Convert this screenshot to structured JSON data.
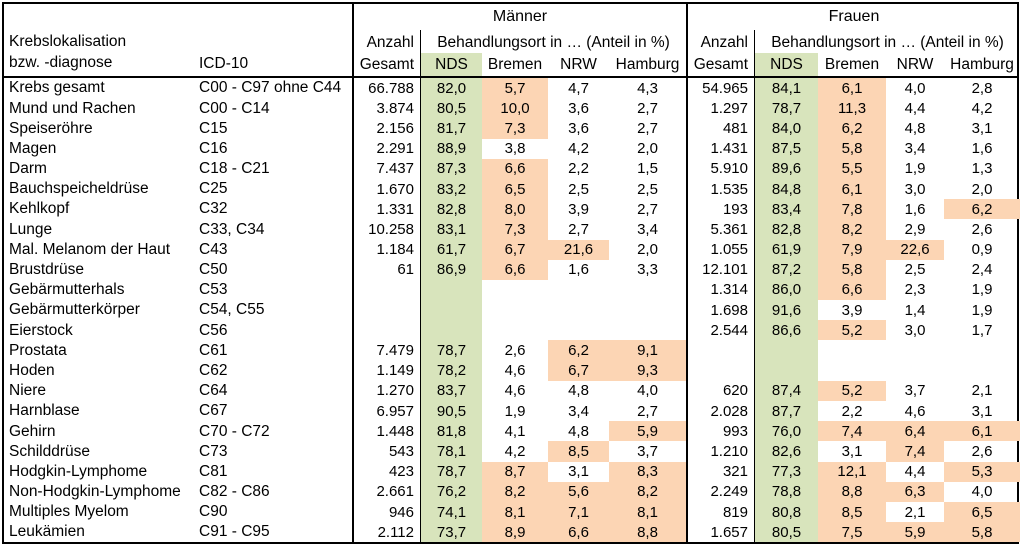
{
  "table": {
    "corner": {
      "line1": "Krebslokalisation",
      "line2": "bzw. -diagnose",
      "icd": "ICD-10"
    },
    "groups": {
      "maenner": "Männer",
      "frauen": "Frauen",
      "anzahl": "Anzahl",
      "gesamt": "Gesamt",
      "behandlungsort": "Behandlungsort in …  (Anteil in %)",
      "locations": [
        "NDS",
        "Bremen",
        "NRW",
        "Hamburg"
      ]
    },
    "colors": {
      "nds_green": "#D8E4BC",
      "highlight_orange": "#FCD5B4"
    },
    "rows": [
      {
        "name": "Krebs gesamt",
        "icd": "C00 - C97 ohne C44",
        "m": {
          "gesamt": "66.788",
          "nds": "82,0",
          "bremen": "5,7",
          "nrw": "4,7",
          "hamburg": "4,3",
          "hl": [
            "bremen"
          ]
        },
        "f": {
          "gesamt": "54.965",
          "nds": "84,1",
          "bremen": "6,1",
          "nrw": "4,0",
          "hamburg": "2,8",
          "hl": [
            "bremen"
          ]
        }
      },
      {
        "name": "Mund und Rachen",
        "icd": "C00 - C14",
        "m": {
          "gesamt": "3.874",
          "nds": "80,5",
          "bremen": "10,0",
          "nrw": "3,6",
          "hamburg": "2,7",
          "hl": [
            "bremen"
          ]
        },
        "f": {
          "gesamt": "1.297",
          "nds": "78,7",
          "bremen": "11,3",
          "nrw": "4,4",
          "hamburg": "4,2",
          "hl": [
            "bremen"
          ]
        }
      },
      {
        "name": "Speiseröhre",
        "icd": "C15",
        "m": {
          "gesamt": "2.156",
          "nds": "81,7",
          "bremen": "7,3",
          "nrw": "3,6",
          "hamburg": "2,7",
          "hl": [
            "bremen"
          ]
        },
        "f": {
          "gesamt": "481",
          "nds": "84,0",
          "bremen": "6,2",
          "nrw": "4,8",
          "hamburg": "3,1",
          "hl": [
            "bremen"
          ]
        }
      },
      {
        "name": "Magen",
        "icd": "C16",
        "m": {
          "gesamt": "2.291",
          "nds": "88,9",
          "bremen": "3,8",
          "nrw": "4,2",
          "hamburg": "2,0",
          "hl": []
        },
        "f": {
          "gesamt": "1.431",
          "nds": "87,5",
          "bremen": "5,8",
          "nrw": "3,4",
          "hamburg": "1,6",
          "hl": [
            "bremen"
          ]
        }
      },
      {
        "name": "Darm",
        "icd": "C18 - C21",
        "m": {
          "gesamt": "7.437",
          "nds": "87,3",
          "bremen": "6,6",
          "nrw": "2,2",
          "hamburg": "1,5",
          "hl": [
            "bremen"
          ]
        },
        "f": {
          "gesamt": "5.910",
          "nds": "89,6",
          "bremen": "5,5",
          "nrw": "1,9",
          "hamburg": "1,3",
          "hl": [
            "bremen"
          ]
        }
      },
      {
        "name": "Bauchspeicheldrüse",
        "icd": "C25",
        "m": {
          "gesamt": "1.670",
          "nds": "83,2",
          "bremen": "6,5",
          "nrw": "2,5",
          "hamburg": "2,5",
          "hl": [
            "bremen"
          ]
        },
        "f": {
          "gesamt": "1.535",
          "nds": "84,8",
          "bremen": "6,1",
          "nrw": "3,0",
          "hamburg": "2,0",
          "hl": [
            "bremen"
          ]
        }
      },
      {
        "name": "Kehlkopf",
        "icd": "C32",
        "m": {
          "gesamt": "1.331",
          "nds": "82,8",
          "bremen": "8,0",
          "nrw": "3,9",
          "hamburg": "2,7",
          "hl": [
            "bremen"
          ]
        },
        "f": {
          "gesamt": "193",
          "nds": "83,4",
          "bremen": "7,8",
          "nrw": "1,6",
          "hamburg": "6,2",
          "hl": [
            "bremen",
            "hamburg"
          ]
        }
      },
      {
        "name": "Lunge",
        "icd": "C33, C34",
        "m": {
          "gesamt": "10.258",
          "nds": "83,1",
          "bremen": "7,3",
          "nrw": "2,7",
          "hamburg": "3,4",
          "hl": [
            "bremen"
          ]
        },
        "f": {
          "gesamt": "5.361",
          "nds": "82,8",
          "bremen": "8,2",
          "nrw": "2,9",
          "hamburg": "2,6",
          "hl": [
            "bremen"
          ]
        }
      },
      {
        "name": "Mal. Melanom der Haut",
        "icd": "C43",
        "m": {
          "gesamt": "1.184",
          "nds": "61,7",
          "bremen": "6,7",
          "nrw": "21,6",
          "hamburg": "2,0",
          "hl": [
            "bremen",
            "nrw"
          ]
        },
        "f": {
          "gesamt": "1.055",
          "nds": "61,9",
          "bremen": "7,9",
          "nrw": "22,6",
          "hamburg": "0,9",
          "hl": [
            "bremen",
            "nrw"
          ]
        }
      },
      {
        "name": "Brustdrüse",
        "icd": "C50",
        "m": {
          "gesamt": "61",
          "nds": "86,9",
          "bremen": "6,6",
          "nrw": "1,6",
          "hamburg": "3,3",
          "hl": [
            "bremen"
          ]
        },
        "f": {
          "gesamt": "12.101",
          "nds": "87,2",
          "bremen": "5,8",
          "nrw": "2,5",
          "hamburg": "2,4",
          "hl": [
            "bremen"
          ]
        }
      },
      {
        "name": "Gebärmutterhals",
        "icd": "C53",
        "m": {
          "gesamt": "",
          "nds": "",
          "bremen": "",
          "nrw": "",
          "hamburg": "",
          "hl": []
        },
        "f": {
          "gesamt": "1.314",
          "nds": "86,0",
          "bremen": "6,6",
          "nrw": "2,3",
          "hamburg": "1,9",
          "hl": [
            "bremen"
          ]
        }
      },
      {
        "name": "Gebärmutterkörper",
        "icd": "C54, C55",
        "m": {
          "gesamt": "",
          "nds": "",
          "bremen": "",
          "nrw": "",
          "hamburg": "",
          "hl": []
        },
        "f": {
          "gesamt": "1.698",
          "nds": "91,6",
          "bremen": "3,9",
          "nrw": "1,4",
          "hamburg": "1,9",
          "hl": []
        }
      },
      {
        "name": "Eierstock",
        "icd": "C56",
        "m": {
          "gesamt": "",
          "nds": "",
          "bremen": "",
          "nrw": "",
          "hamburg": "",
          "hl": []
        },
        "f": {
          "gesamt": "2.544",
          "nds": "86,6",
          "bremen": "5,2",
          "nrw": "3,0",
          "hamburg": "1,7",
          "hl": [
            "bremen"
          ]
        }
      },
      {
        "name": "Prostata",
        "icd": "C61",
        "m": {
          "gesamt": "7.479",
          "nds": "78,7",
          "bremen": "2,6",
          "nrw": "6,2",
          "hamburg": "9,1",
          "hl": [
            "nrw",
            "hamburg"
          ]
        },
        "f": {
          "gesamt": "",
          "nds": "",
          "bremen": "",
          "nrw": "",
          "hamburg": "",
          "hl": []
        }
      },
      {
        "name": "Hoden",
        "icd": "C62",
        "m": {
          "gesamt": "1.149",
          "nds": "78,2",
          "bremen": "4,6",
          "nrw": "6,7",
          "hamburg": "9,3",
          "hl": [
            "nrw",
            "hamburg"
          ]
        },
        "f": {
          "gesamt": "",
          "nds": "",
          "bremen": "",
          "nrw": "",
          "hamburg": "",
          "hl": []
        }
      },
      {
        "name": "Niere",
        "icd": "C64",
        "m": {
          "gesamt": "1.270",
          "nds": "83,7",
          "bremen": "4,6",
          "nrw": "4,8",
          "hamburg": "4,0",
          "hl": []
        },
        "f": {
          "gesamt": "620",
          "nds": "87,4",
          "bremen": "5,2",
          "nrw": "3,7",
          "hamburg": "2,1",
          "hl": [
            "bremen"
          ]
        }
      },
      {
        "name": "Harnblase",
        "icd": "C67",
        "m": {
          "gesamt": "6.957",
          "nds": "90,5",
          "bremen": "1,9",
          "nrw": "3,4",
          "hamburg": "2,7",
          "hl": []
        },
        "f": {
          "gesamt": "2.028",
          "nds": "87,7",
          "bremen": "2,2",
          "nrw": "4,6",
          "hamburg": "3,1",
          "hl": []
        }
      },
      {
        "name": "Gehirn",
        "icd": "C70 - C72",
        "m": {
          "gesamt": "1.448",
          "nds": "81,8",
          "bremen": "4,1",
          "nrw": "4,8",
          "hamburg": "5,9",
          "hl": [
            "hamburg"
          ]
        },
        "f": {
          "gesamt": "993",
          "nds": "76,0",
          "bremen": "7,4",
          "nrw": "6,4",
          "hamburg": "6,1",
          "hl": [
            "bremen",
            "nrw",
            "hamburg"
          ]
        }
      },
      {
        "name": "Schilddrüse",
        "icd": "C73",
        "m": {
          "gesamt": "543",
          "nds": "78,1",
          "bremen": "4,2",
          "nrw": "8,5",
          "hamburg": "3,7",
          "hl": [
            "nrw"
          ]
        },
        "f": {
          "gesamt": "1.210",
          "nds": "82,6",
          "bremen": "3,1",
          "nrw": "7,4",
          "hamburg": "2,6",
          "hl": [
            "nrw"
          ]
        }
      },
      {
        "name": "Hodgkin-Lymphome",
        "icd": "C81",
        "m": {
          "gesamt": "423",
          "nds": "78,7",
          "bremen": "8,7",
          "nrw": "3,1",
          "hamburg": "8,3",
          "hl": [
            "bremen",
            "hamburg"
          ]
        },
        "f": {
          "gesamt": "321",
          "nds": "77,3",
          "bremen": "12,1",
          "nrw": "4,4",
          "hamburg": "5,3",
          "hl": [
            "bremen",
            "hamburg"
          ]
        }
      },
      {
        "name": "Non-Hodgkin-Lymphome",
        "icd": "C82 - C86",
        "m": {
          "gesamt": "2.661",
          "nds": "76,2",
          "bremen": "8,2",
          "nrw": "5,6",
          "hamburg": "8,2",
          "hl": [
            "bremen",
            "nrw",
            "hamburg"
          ]
        },
        "f": {
          "gesamt": "2.249",
          "nds": "78,8",
          "bremen": "8,8",
          "nrw": "6,3",
          "hamburg": "4,0",
          "hl": [
            "bremen",
            "nrw"
          ]
        }
      },
      {
        "name": "Multiples Myelom",
        "icd": "C90",
        "m": {
          "gesamt": "946",
          "nds": "74,1",
          "bremen": "8,1",
          "nrw": "7,1",
          "hamburg": "8,1",
          "hl": [
            "bremen",
            "nrw",
            "hamburg"
          ]
        },
        "f": {
          "gesamt": "819",
          "nds": "80,8",
          "bremen": "8,5",
          "nrw": "2,1",
          "hamburg": "6,5",
          "hl": [
            "bremen",
            "hamburg"
          ]
        }
      },
      {
        "name": "Leukämien",
        "icd": "C91 - C95",
        "m": {
          "gesamt": "2.112",
          "nds": "73,7",
          "bremen": "8,9",
          "nrw": "6,6",
          "hamburg": "8,8",
          "hl": [
            "bremen",
            "nrw",
            "hamburg"
          ]
        },
        "f": {
          "gesamt": "1.657",
          "nds": "80,5",
          "bremen": "7,5",
          "nrw": "5,9",
          "hamburg": "5,8",
          "hl": [
            "bremen",
            "nrw",
            "hamburg"
          ]
        }
      }
    ]
  }
}
